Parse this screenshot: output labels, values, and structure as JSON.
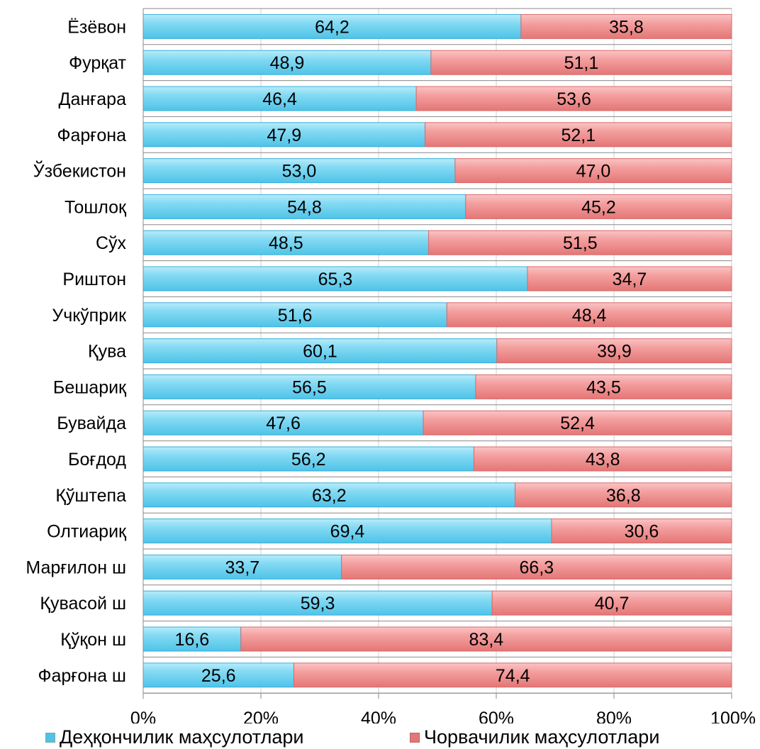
{
  "chart_data": {
    "type": "bar",
    "orientation": "horizontal",
    "stacked": "percent",
    "categories": [
      "Ёзёвон",
      "Фурқат",
      "Данғара",
      "Фарғона",
      "Ўзбекистон",
      "Тошлоқ",
      "Сўх",
      "Риштон",
      "Учкўприк",
      "Қува",
      "Бешариқ",
      "Бувайда",
      "Боғдод",
      "Қўштепа",
      "Олтиариқ",
      "Марғилон ш",
      "Қувасой ш",
      "Қўқон ш",
      "Фарғона ш"
    ],
    "series": [
      {
        "name": "Деҳқончилик маҳсулотлари",
        "color": "#7fd8f2",
        "values": [
          64.2,
          48.9,
          46.4,
          47.9,
          53.0,
          54.8,
          48.5,
          65.3,
          51.6,
          60.1,
          56.5,
          47.6,
          56.2,
          63.2,
          69.4,
          33.7,
          59.3,
          16.6,
          25.6
        ],
        "labels": [
          "64,2",
          "48,9",
          "46,4",
          "47,9",
          "53,0",
          "54,8",
          "48,5",
          "65,3",
          "51,6",
          "60,1",
          "56,5",
          "47,6",
          "56,2",
          "63,2",
          "69,4",
          "33,7",
          "59,3",
          "16,6",
          "25,6"
        ]
      },
      {
        "name": "Чорвачилик маҳсулотлари",
        "color": "#f29a9a",
        "values": [
          35.8,
          51.1,
          53.6,
          52.1,
          47.0,
          45.2,
          51.5,
          34.7,
          48.4,
          39.9,
          43.5,
          52.4,
          43.8,
          36.8,
          30.6,
          66.3,
          40.7,
          83.4,
          74.4
        ],
        "labels": [
          "35,8",
          "51,1",
          "53,6",
          "52,1",
          "47,0",
          "45,2",
          "51,5",
          "34,7",
          "48,4",
          "39,9",
          "43,5",
          "52,4",
          "43,8",
          "36,8",
          "30,6",
          "66,3",
          "40,7",
          "83,4",
          "74,4"
        ]
      }
    ],
    "xlim": [
      0,
      100
    ],
    "xticks": [
      "0%",
      "20%",
      "40%",
      "60%",
      "80%",
      "100%"
    ],
    "grid": true,
    "legend_position": "bottom"
  }
}
